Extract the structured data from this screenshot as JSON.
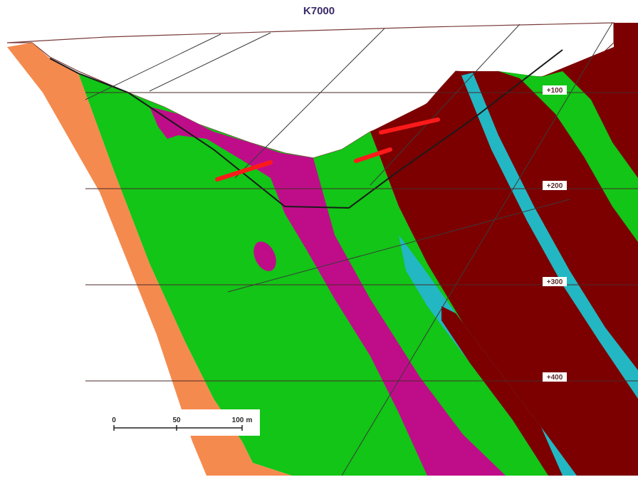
{
  "title": "K7000",
  "levels": [
    "+100",
    "+200",
    "+300",
    "+400"
  ],
  "scale": {
    "zero": "0",
    "mid": "50",
    "end": "100",
    "unit": "m"
  },
  "colors": {
    "orange_unit": "#f58a4e",
    "green_unit": "#12c516",
    "magenta_unit": "#bf0d8a",
    "maroon_unit": "#7c0000",
    "cyan_unit": "#22b7c3",
    "ore_marker": "#ff1a1a",
    "pit_outline": "#1a1a1a"
  }
}
